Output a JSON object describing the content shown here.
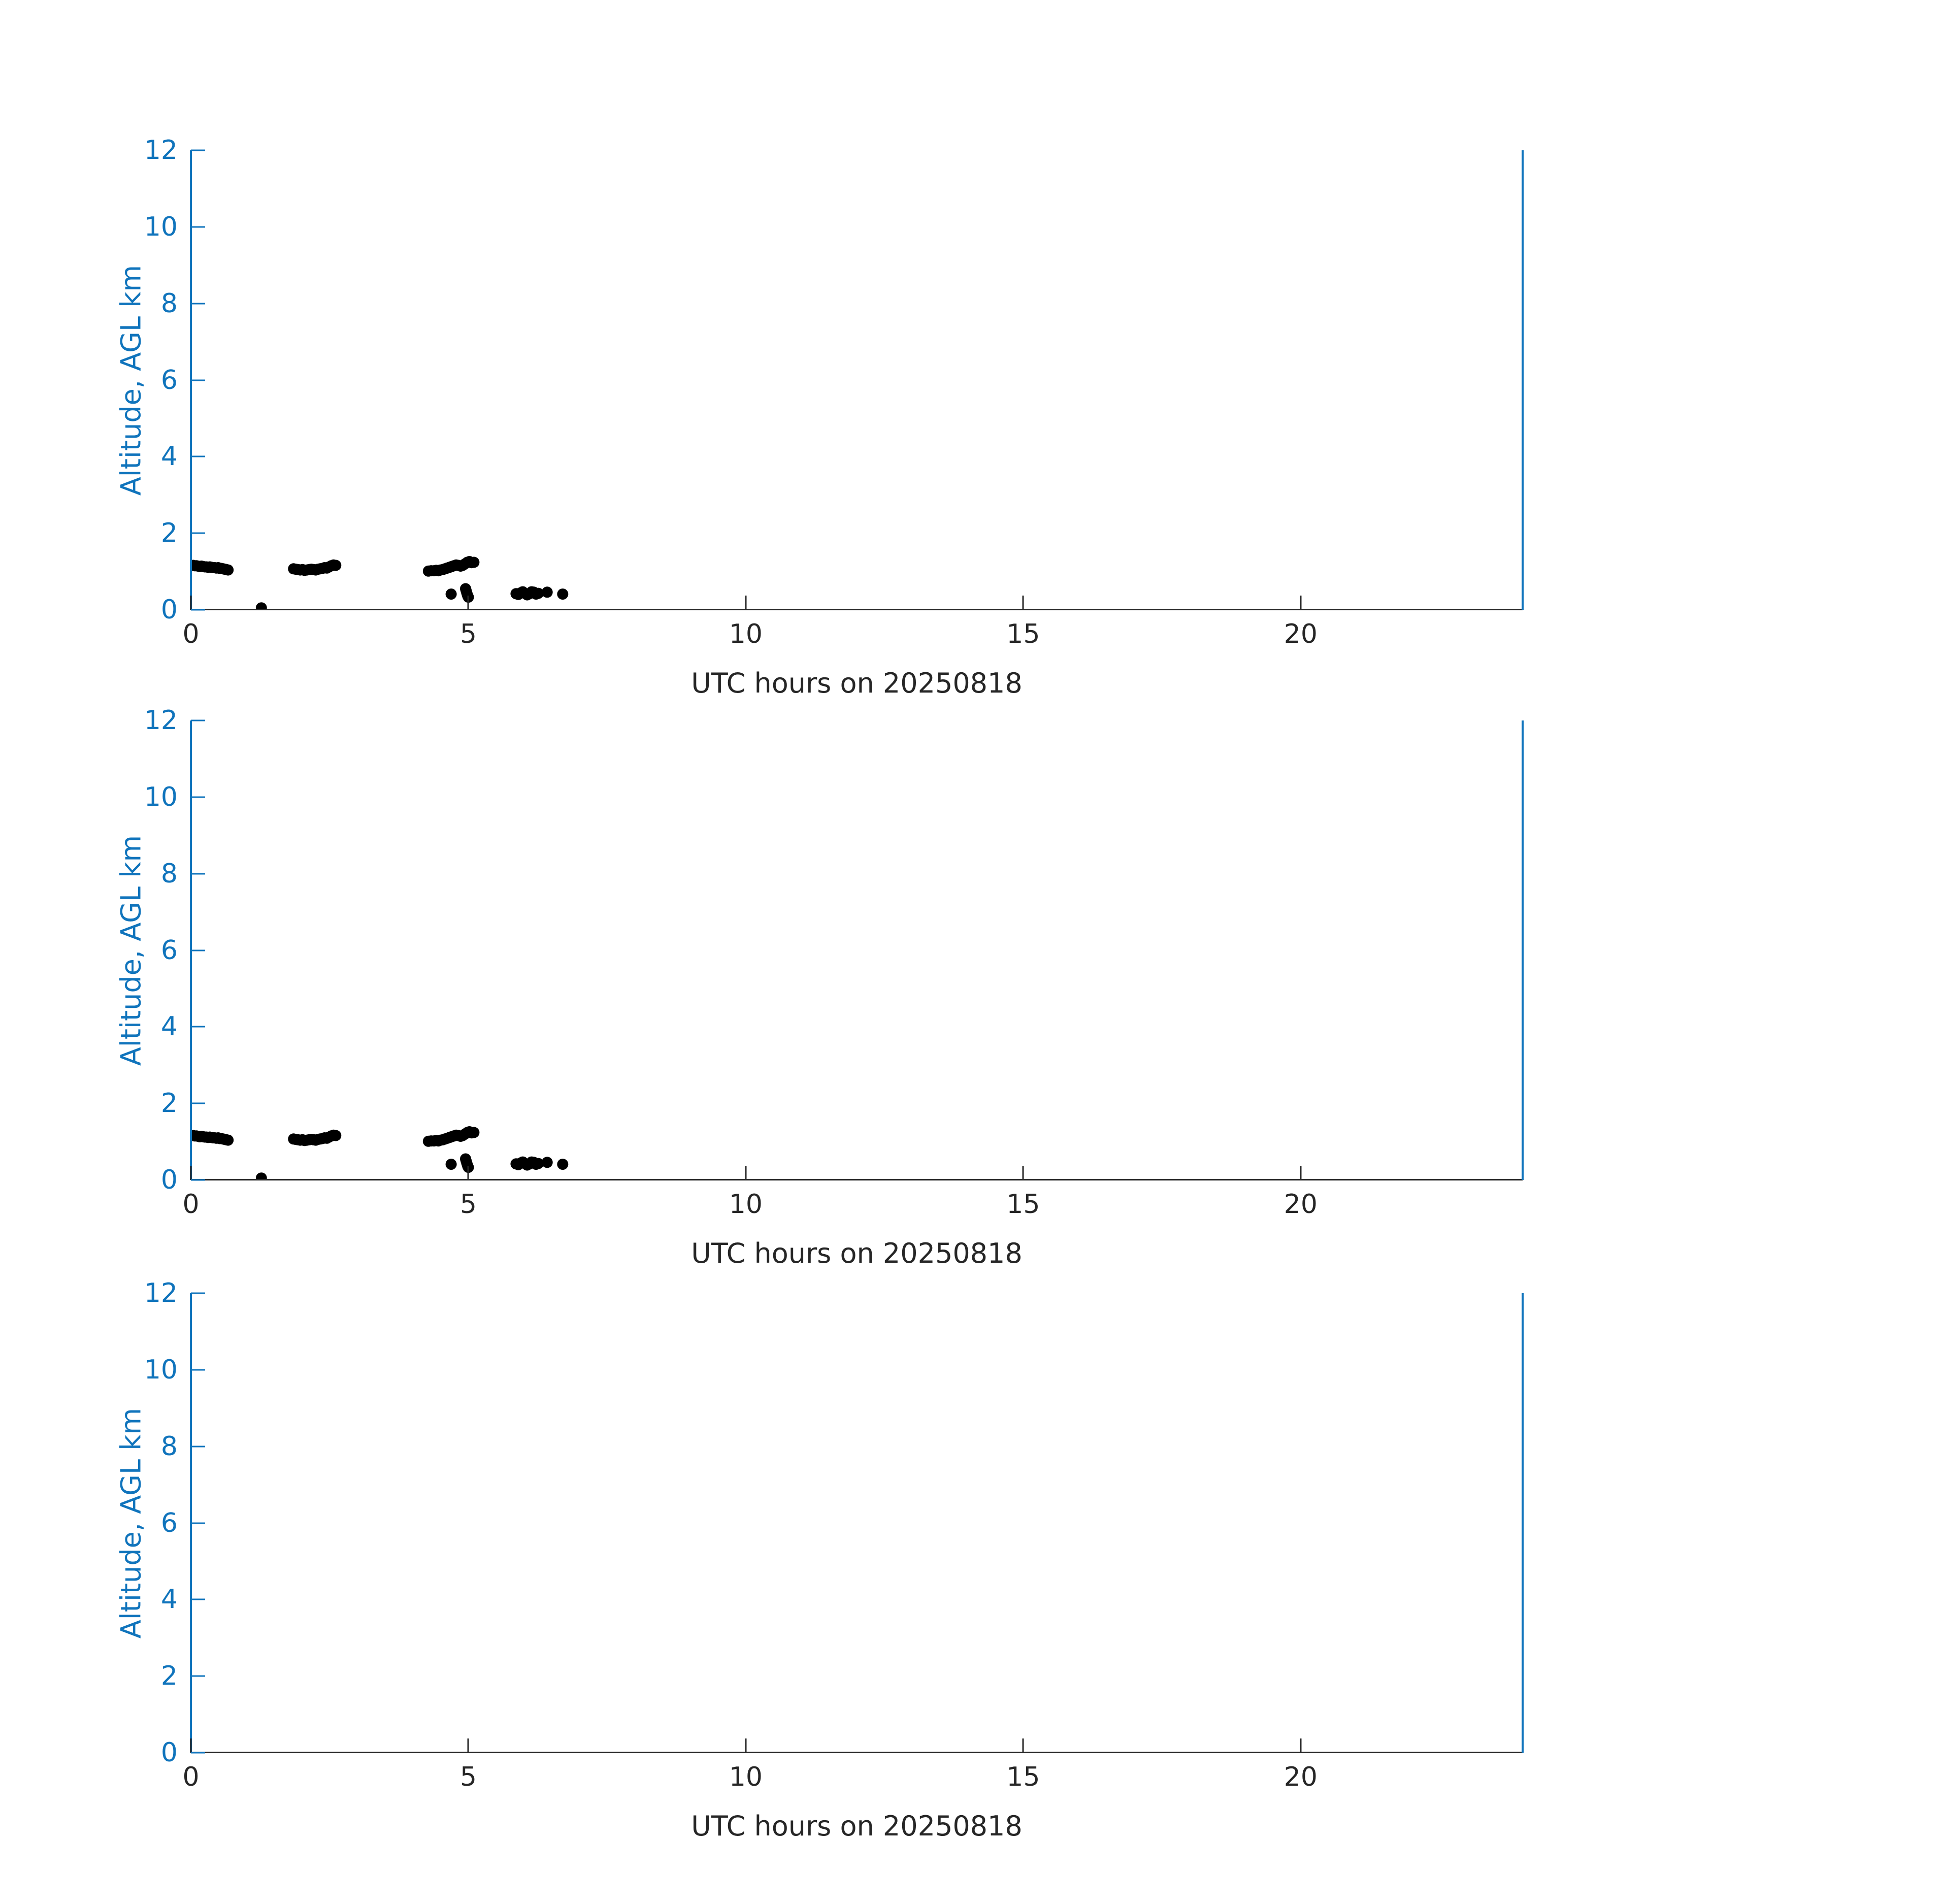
{
  "figure": {
    "xlabel": "UTC hours on 20250818",
    "ylabel": "Altitude, AGL km",
    "x_ticks": [
      0,
      5,
      10,
      15,
      20
    ],
    "y_ticks": [
      0,
      2,
      4,
      6,
      8,
      10,
      12
    ],
    "xlim": [
      0,
      24
    ],
    "ylim": [
      0,
      12
    ],
    "colors": {
      "y_axis_blue": "#1074BC",
      "x_axis_dark": "#262626",
      "marker_black": "#000000"
    }
  },
  "chart_data": [
    {
      "type": "scatter",
      "panel": "top",
      "xlabel": "UTC hours on 20250818",
      "ylabel": "Altitude, AGL km",
      "xlim": [
        0,
        24
      ],
      "ylim": [
        0,
        12
      ],
      "grid": false,
      "legend": "none",
      "right_edge_line_x": 24,
      "x": [
        0.04,
        0.07,
        0.1,
        0.13,
        0.16,
        0.19,
        0.22,
        0.25,
        0.28,
        0.31,
        0.34,
        0.37,
        0.4,
        0.43,
        0.46,
        0.49,
        0.52,
        0.55,
        0.58,
        0.61,
        0.64,
        0.67,
        1.27,
        1.85,
        1.89,
        1.93,
        1.97,
        2.01,
        2.05,
        2.09,
        2.13,
        2.17,
        2.21,
        2.25,
        2.29,
        2.33,
        2.37,
        2.41,
        2.45,
        2.49,
        2.53,
        2.57,
        2.61,
        4.28,
        4.33,
        4.38,
        4.42,
        4.46,
        4.5,
        4.54,
        4.58,
        4.62,
        4.66,
        4.7,
        4.74,
        4.78,
        4.82,
        4.86,
        4.9,
        4.94,
        4.98,
        5.02,
        5.06,
        5.1,
        4.69,
        4.95,
        4.96,
        4.97,
        4.98,
        4.99,
        5.0,
        5.86,
        5.9,
        5.94,
        5.98,
        6.02,
        6.06,
        6.1,
        6.14,
        6.18,
        6.22,
        6.26,
        6.42,
        6.7
      ],
      "y": [
        1.16,
        1.15,
        1.15,
        1.14,
        1.13,
        1.14,
        1.13,
        1.12,
        1.12,
        1.11,
        1.12,
        1.11,
        1.1,
        1.1,
        1.09,
        1.1,
        1.08,
        1.08,
        1.07,
        1.06,
        1.05,
        1.04,
        0.05,
        1.07,
        1.06,
        1.05,
        1.04,
        1.05,
        1.03,
        1.04,
        1.05,
        1.06,
        1.05,
        1.04,
        1.06,
        1.07,
        1.08,
        1.1,
        1.09,
        1.12,
        1.15,
        1.17,
        1.16,
        1.01,
        1.02,
        1.02,
        1.03,
        1.02,
        1.04,
        1.05,
        1.07,
        1.09,
        1.11,
        1.13,
        1.15,
        1.17,
        1.16,
        1.14,
        1.16,
        1.2,
        1.24,
        1.26,
        1.23,
        1.24,
        0.41,
        0.55,
        0.5,
        0.45,
        0.4,
        0.36,
        0.33,
        0.42,
        0.4,
        0.44,
        0.47,
        0.43,
        0.39,
        0.42,
        0.47,
        0.46,
        0.41,
        0.43,
        0.46,
        0.41
      ]
    },
    {
      "type": "scatter",
      "panel": "middle",
      "xlabel": "UTC hours on 20250818",
      "ylabel": "Altitude, AGL km",
      "xlim": [
        0,
        24
      ],
      "ylim": [
        0,
        12
      ],
      "grid": false,
      "legend": "none",
      "right_edge_line_x": 24,
      "x": [
        0.04,
        0.07,
        0.1,
        0.13,
        0.16,
        0.19,
        0.22,
        0.25,
        0.28,
        0.31,
        0.34,
        0.37,
        0.4,
        0.43,
        0.46,
        0.49,
        0.52,
        0.55,
        0.58,
        0.61,
        0.64,
        0.67,
        1.27,
        1.85,
        1.89,
        1.93,
        1.97,
        2.01,
        2.05,
        2.09,
        2.13,
        2.17,
        2.21,
        2.25,
        2.29,
        2.33,
        2.37,
        2.41,
        2.45,
        2.49,
        2.53,
        2.57,
        2.61,
        4.28,
        4.33,
        4.38,
        4.42,
        4.46,
        4.5,
        4.54,
        4.58,
        4.62,
        4.66,
        4.7,
        4.74,
        4.78,
        4.82,
        4.86,
        4.9,
        4.94,
        4.98,
        5.02,
        5.06,
        5.1,
        4.69,
        4.95,
        4.96,
        4.97,
        4.98,
        4.99,
        5.0,
        5.86,
        5.9,
        5.94,
        5.98,
        6.02,
        6.06,
        6.1,
        6.14,
        6.18,
        6.22,
        6.26,
        6.42,
        6.7
      ],
      "y": [
        1.16,
        1.15,
        1.15,
        1.14,
        1.13,
        1.14,
        1.13,
        1.12,
        1.12,
        1.11,
        1.12,
        1.11,
        1.1,
        1.1,
        1.09,
        1.1,
        1.08,
        1.08,
        1.07,
        1.06,
        1.05,
        1.04,
        0.05,
        1.07,
        1.06,
        1.05,
        1.04,
        1.05,
        1.03,
        1.04,
        1.05,
        1.06,
        1.05,
        1.04,
        1.06,
        1.07,
        1.08,
        1.1,
        1.09,
        1.12,
        1.15,
        1.17,
        1.16,
        1.01,
        1.02,
        1.02,
        1.03,
        1.02,
        1.04,
        1.05,
        1.07,
        1.09,
        1.11,
        1.13,
        1.15,
        1.17,
        1.16,
        1.14,
        1.16,
        1.2,
        1.24,
        1.26,
        1.23,
        1.24,
        0.41,
        0.55,
        0.5,
        0.45,
        0.4,
        0.36,
        0.33,
        0.42,
        0.4,
        0.44,
        0.47,
        0.43,
        0.39,
        0.42,
        0.47,
        0.46,
        0.41,
        0.43,
        0.46,
        0.41
      ]
    },
    {
      "type": "scatter",
      "panel": "bottom",
      "xlabel": "UTC hours on 20250818",
      "ylabel": "Altitude, AGL km",
      "xlim": [
        0,
        24
      ],
      "ylim": [
        0,
        12
      ],
      "grid": false,
      "legend": "none",
      "right_edge_line_x": 24,
      "x": [],
      "y": []
    }
  ]
}
